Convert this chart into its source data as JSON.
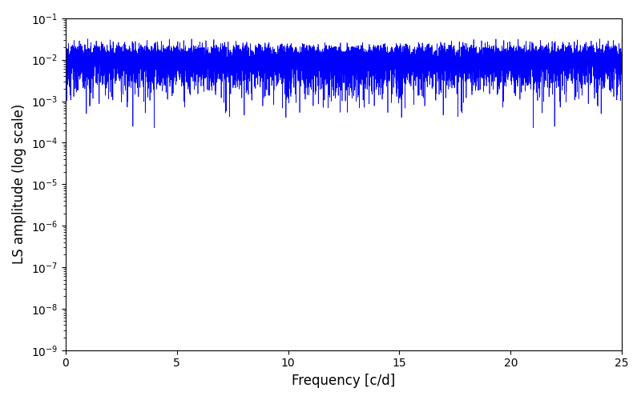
{
  "xlabel": "Frequency [c/d]",
  "ylabel": "LS amplitude (log scale)",
  "line_color": "#0000ff",
  "xlim": [
    0,
    25
  ],
  "ylim": [
    1e-09,
    0.1
  ],
  "xticks": [
    0,
    5,
    10,
    15,
    20,
    25
  ],
  "figsize": [
    8.0,
    5.0
  ],
  "dpi": 100,
  "seed": 42,
  "num_points": 10000,
  "linewidth": 0.5
}
